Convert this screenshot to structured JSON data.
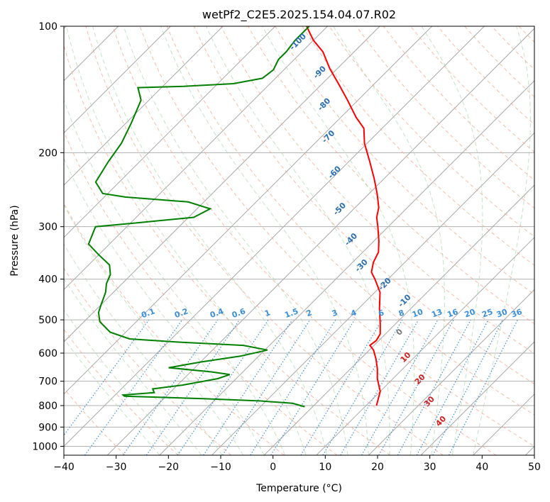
{
  "chart_data": {
    "type": "line",
    "title": "wetPf2_C2E5.2025.154.04.07.R02",
    "xlabel": "Temperature (°C)",
    "ylabel": "Pressure (hPa)",
    "xlim": [
      -40,
      50
    ],
    "ylim": [
      1050,
      100
    ],
    "y_scale": "log",
    "skew": "skew-T",
    "x_ticks": [
      "−40",
      "−30",
      "−20",
      "−10",
      "0",
      "10",
      "20",
      "30",
      "40",
      "50"
    ],
    "y_ticks": [
      "100",
      "200",
      "300",
      "400",
      "500",
      "600",
      "700",
      "800",
      "900",
      "1000"
    ],
    "grid": true,
    "series": [
      {
        "color": "#ff0000",
        "data": [
          [
            12.0,
            800
          ],
          [
            10.0,
            740
          ],
          [
            7.0,
            690
          ],
          [
            5.2,
            655
          ],
          [
            3.0,
            620
          ],
          [
            0.8,
            590
          ],
          [
            -0.8,
            575
          ],
          [
            -0.5,
            560
          ],
          [
            -1.0,
            540
          ],
          [
            -3.0,
            510
          ],
          [
            -6.0,
            470
          ],
          [
            -9.0,
            430
          ],
          [
            -12.5,
            400
          ],
          [
            -14.5,
            385
          ],
          [
            -16.0,
            365
          ],
          [
            -17.0,
            345
          ],
          [
            -19.0,
            325
          ],
          [
            -22.0,
            300
          ],
          [
            -24.0,
            285
          ],
          [
            -25.5,
            270
          ],
          [
            -28.5,
            250
          ],
          [
            -32.0,
            230
          ],
          [
            -36.0,
            210
          ],
          [
            -40.5,
            190
          ],
          [
            -43.5,
            175
          ],
          [
            -47.0,
            165
          ],
          [
            -52.0,
            150
          ],
          [
            -56.5,
            138
          ],
          [
            -61.5,
            126
          ],
          [
            -66.0,
            115
          ],
          [
            -70.0,
            108
          ],
          [
            -74.0,
            100
          ]
        ]
      },
      {
        "color": "#008000",
        "data": [
          [
            -1.5,
            805
          ],
          [
            -4.5,
            790
          ],
          [
            -11.0,
            780
          ],
          [
            -22.5,
            770
          ],
          [
            -38.0,
            760
          ],
          [
            -38.5,
            755
          ],
          [
            -33.0,
            745
          ],
          [
            -34.0,
            730
          ],
          [
            -29.0,
            715
          ],
          [
            -23.5,
            690
          ],
          [
            -22.0,
            675
          ],
          [
            -26.0,
            665
          ],
          [
            -35.0,
            650
          ],
          [
            -30.0,
            630
          ],
          [
            -23.5,
            610
          ],
          [
            -19.5,
            590
          ],
          [
            -25.0,
            575
          ],
          [
            -38.0,
            565
          ],
          [
            -48.0,
            555
          ],
          [
            -53.0,
            535
          ],
          [
            -57.0,
            505
          ],
          [
            -59.0,
            480
          ],
          [
            -60.0,
            460
          ],
          [
            -61.5,
            430
          ],
          [
            -63.0,
            410
          ],
          [
            -64.0,
            390
          ],
          [
            -66.0,
            370
          ],
          [
            -70.0,
            350
          ],
          [
            -74.0,
            330
          ],
          [
            -76.0,
            300
          ],
          [
            -70.0,
            295
          ],
          [
            -59.0,
            285
          ],
          [
            -57.5,
            272
          ],
          [
            -63.0,
            262
          ],
          [
            -76.0,
            255
          ],
          [
            -81.0,
            250
          ],
          [
            -84.5,
            235
          ],
          [
            -86.0,
            210
          ],
          [
            -87.0,
            190
          ],
          [
            -89.0,
            170
          ],
          [
            -91.5,
            150
          ],
          [
            -94.5,
            140
          ],
          [
            -86.0,
            139
          ],
          [
            -77.0,
            137
          ],
          [
            -72.5,
            133
          ],
          [
            -72.0,
            127
          ],
          [
            -73.0,
            120
          ],
          [
            -73.0,
            115
          ],
          [
            -73.5,
            108
          ],
          [
            -73.5,
            100
          ]
        ]
      }
    ],
    "isotherm_labels": [
      "-100",
      "-90",
      "-80",
      "-70",
      "-60",
      "-50",
      "-40",
      "-30",
      "-20",
      "-10",
      "0",
      "10",
      "20",
      "30",
      "40"
    ],
    "mixing_ratio_labels": [
      "0.1",
      "0.2",
      "0.4",
      "0.6",
      "1",
      "1.5",
      "2",
      "3",
      "4",
      "6",
      "8",
      "10",
      "13",
      "16",
      "20",
      "25",
      "30",
      "36"
    ]
  }
}
